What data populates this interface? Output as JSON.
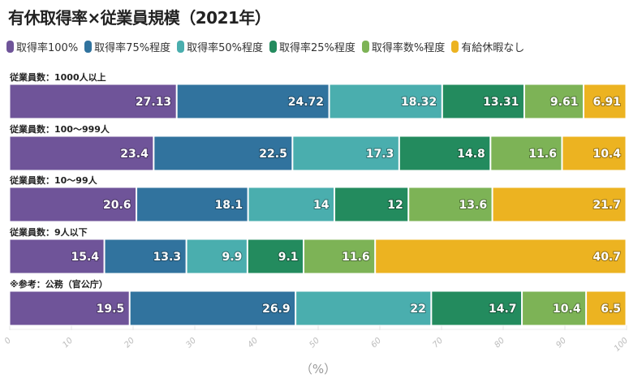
{
  "chart_data": {
    "type": "bar",
    "stacked": true,
    "orientation": "horizontal",
    "title": "有休取得率×従業員規模（2021年）",
    "xlabel": "（%）",
    "xlim": [
      0,
      100
    ],
    "xticks": [
      "0",
      "10",
      "20",
      "30",
      "40",
      "50",
      "60",
      "70",
      "80",
      "90",
      "100"
    ],
    "legend_position": "top-left",
    "categories": [
      "従業員数：1000人以上",
      "従業員数：100〜999人",
      "従業員数：10〜99人",
      "従業員数：9人以下",
      "※参考：公務（官公庁）"
    ],
    "series": [
      {
        "name": "取得率100%",
        "color": "#6f5499",
        "values": [
          27.13,
          23.4,
          20.6,
          15.4,
          19.5
        ]
      },
      {
        "name": "取得率75%程度",
        "color": "#31739e",
        "values": [
          24.72,
          22.5,
          18.1,
          13.3,
          26.9
        ]
      },
      {
        "name": "取得率50%程度",
        "color": "#4aaeae",
        "values": [
          18.32,
          17.3,
          14,
          9.9,
          22
        ]
      },
      {
        "name": "取得率25%程度",
        "color": "#238b5e",
        "values": [
          13.31,
          14.8,
          12,
          9.1,
          14.7
        ]
      },
      {
        "name": "取得率数%程度",
        "color": "#7db356",
        "values": [
          9.61,
          11.6,
          13.6,
          11.6,
          10.4
        ]
      },
      {
        "name": "有給休暇なし",
        "color": "#ecb321",
        "values": [
          6.91,
          10.4,
          21.7,
          40.7,
          6.5
        ]
      }
    ]
  }
}
